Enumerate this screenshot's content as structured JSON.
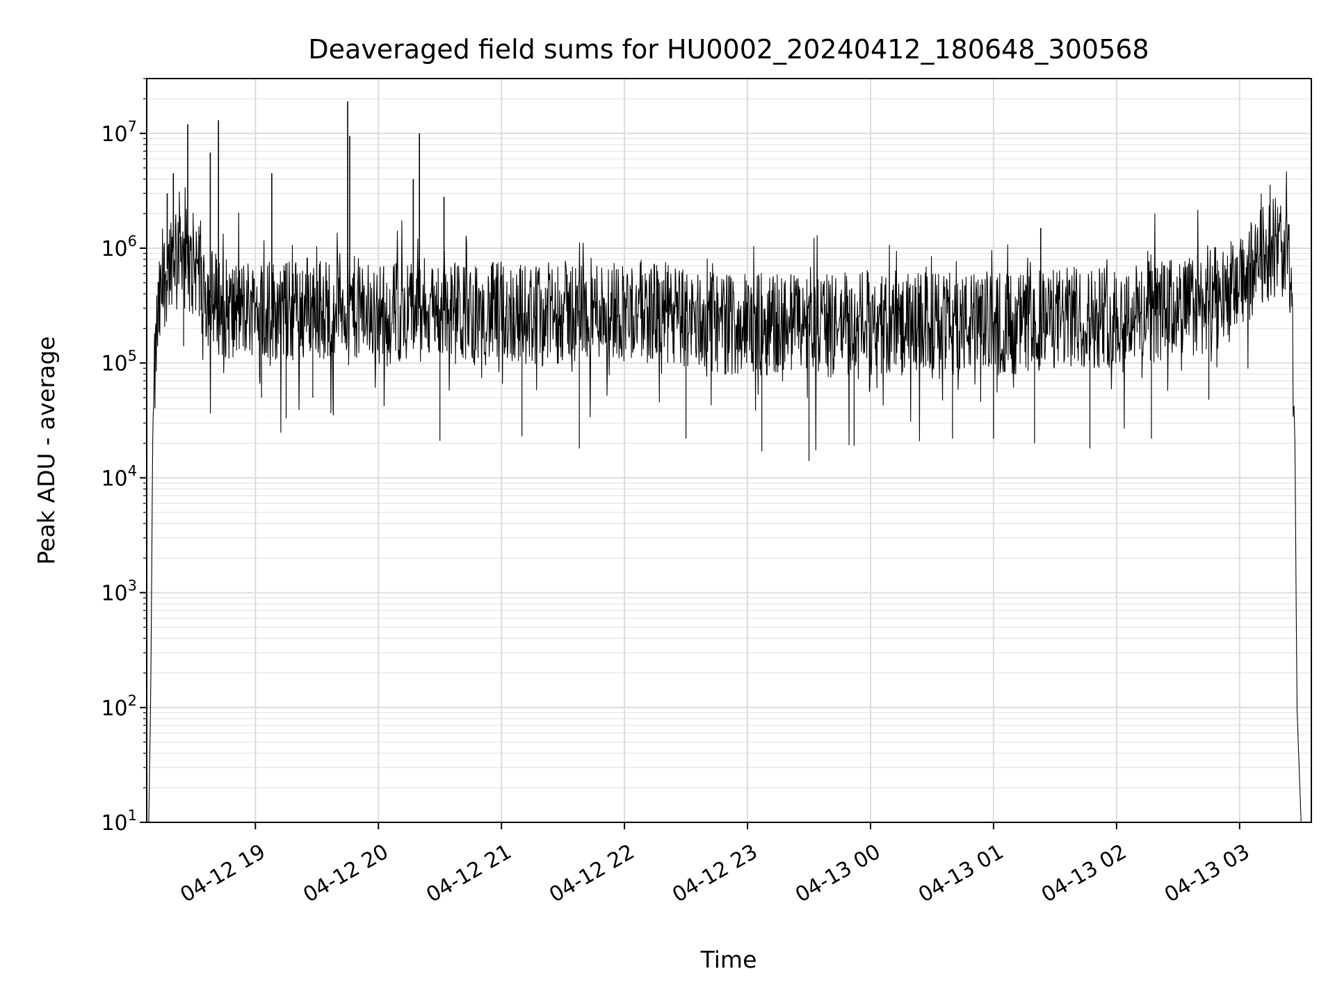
{
  "chart_data": {
    "type": "line",
    "title": "Deaveraged field sums for HU0002_20240412_180648_300568",
    "xlabel": "Time",
    "ylabel": "Peak ADU - average",
    "yscale": "log",
    "ylim": [
      10,
      30000000
    ],
    "xlim": [
      "2024-04-12 18:07",
      "2024-04-13 03:35"
    ],
    "grid": true,
    "line_color": "#000000",
    "xticks": [
      {
        "t": "2024-04-12 19:00",
        "label": "04-12 19"
      },
      {
        "t": "2024-04-12 20:00",
        "label": "04-12 20"
      },
      {
        "t": "2024-04-12 21:00",
        "label": "04-12 21"
      },
      {
        "t": "2024-04-12 22:00",
        "label": "04-12 22"
      },
      {
        "t": "2024-04-12 23:00",
        "label": "04-12 23"
      },
      {
        "t": "2024-04-13 00:00",
        "label": "04-13 00"
      },
      {
        "t": "2024-04-13 01:00",
        "label": "04-13 01"
      },
      {
        "t": "2024-04-13 02:00",
        "label": "04-13 02"
      },
      {
        "t": "2024-04-13 03:00",
        "label": "04-13 03"
      }
    ],
    "yticks": [
      {
        "v": 10,
        "base": "10",
        "exp": "1"
      },
      {
        "v": 100,
        "base": "10",
        "exp": "2"
      },
      {
        "v": 1000,
        "base": "10",
        "exp": "3"
      },
      {
        "v": 10000,
        "base": "10",
        "exp": "4"
      },
      {
        "v": 100000,
        "base": "10",
        "exp": "5"
      },
      {
        "v": 1000000,
        "base": "10",
        "exp": "6"
      },
      {
        "v": 10000000,
        "base": "10",
        "exp": "7"
      }
    ],
    "series": [
      {
        "x": [
          "2024-04-12 18:08",
          "2024-04-12 18:09",
          "2024-04-12 18:10",
          "2024-04-12 18:12",
          "2024-04-12 18:15",
          "2024-04-12 18:20",
          "2024-04-12 18:24",
          "2024-04-12 18:28",
          "2024-04-12 18:32",
          "2024-04-12 18:36",
          "2024-04-12 18:40",
          "2024-04-12 18:45",
          "2024-04-12 18:50",
          "2024-04-12 18:55",
          "2024-04-12 19:00",
          "2024-04-12 19:05",
          "2024-04-12 19:10",
          "2024-04-12 19:15",
          "2024-04-12 19:20",
          "2024-04-12 19:25",
          "2024-04-12 19:30",
          "2024-04-12 19:35",
          "2024-04-12 19:40",
          "2024-04-12 19:45",
          "2024-04-12 19:50",
          "2024-04-12 19:55",
          "2024-04-12 20:00",
          "2024-04-12 20:10",
          "2024-04-12 20:20",
          "2024-04-12 20:30",
          "2024-04-12 20:40",
          "2024-04-12 20:50",
          "2024-04-12 21:00",
          "2024-04-12 21:10",
          "2024-04-12 21:20",
          "2024-04-12 21:30",
          "2024-04-12 21:40",
          "2024-04-12 21:50",
          "2024-04-12 22:00",
          "2024-04-12 22:10",
          "2024-04-12 22:20",
          "2024-04-12 22:30",
          "2024-04-12 22:40",
          "2024-04-12 22:50",
          "2024-04-12 23:00",
          "2024-04-12 23:10",
          "2024-04-12 23:20",
          "2024-04-12 23:30",
          "2024-04-12 23:40",
          "2024-04-12 23:50",
          "2024-04-13 00:00",
          "2024-04-13 00:10",
          "2024-04-13 00:20",
          "2024-04-13 00:30",
          "2024-04-13 00:40",
          "2024-04-13 00:50",
          "2024-04-13 01:00",
          "2024-04-13 01:10",
          "2024-04-13 01:20",
          "2024-04-13 01:30",
          "2024-04-13 01:40",
          "2024-04-13 01:50",
          "2024-04-13 02:00",
          "2024-04-13 02:10",
          "2024-04-13 02:20",
          "2024-04-13 02:30",
          "2024-04-13 02:40",
          "2024-04-13 02:50",
          "2024-04-13 03:00",
          "2024-04-13 03:05",
          "2024-04-13 03:10",
          "2024-04-13 03:15",
          "2024-04-13 03:20",
          "2024-04-13 03:23",
          "2024-04-13 03:25",
          "2024-04-13 03:27",
          "2024-04-13 03:28",
          "2024-04-13 03:30"
        ],
        "y": [
          10,
          150,
          30000,
          200000,
          500000,
          1000000,
          1200000,
          600000,
          800000,
          400000,
          350000,
          300000,
          280000,
          300000,
          320000,
          300000,
          290000,
          280000,
          300000,
          330000,
          310000,
          300000,
          350000,
          320000,
          300000,
          280000,
          270000,
          280000,
          300000,
          290000,
          270000,
          260000,
          280000,
          270000,
          260000,
          280000,
          290000,
          300000,
          290000,
          280000,
          270000,
          240000,
          230000,
          220000,
          210000,
          220000,
          230000,
          220000,
          210000,
          220000,
          220000,
          210000,
          220000,
          230000,
          220000,
          220000,
          230000,
          220000,
          230000,
          240000,
          250000,
          250000,
          260000,
          270000,
          280000,
          300000,
          320000,
          380000,
          450000,
          600000,
          850000,
          1000000,
          1050000,
          900000,
          500000,
          20000,
          100,
          10
        ]
      }
    ],
    "spikes": [
      {
        "t": "2024-04-12 18:17",
        "v": 3000000
      },
      {
        "t": "2024-04-12 18:20",
        "v": 4500000
      },
      {
        "t": "2024-04-12 18:27",
        "v": 12000000
      },
      {
        "t": "2024-04-12 18:38",
        "v": 6800000
      },
      {
        "t": "2024-04-12 18:42",
        "v": 13000000
      },
      {
        "t": "2024-04-12 19:08",
        "v": 4500000
      },
      {
        "t": "2024-04-12 19:45",
        "v": 19000000
      },
      {
        "t": "2024-04-12 19:46",
        "v": 9500000
      },
      {
        "t": "2024-04-12 20:17",
        "v": 4000000
      },
      {
        "t": "2024-04-12 20:20",
        "v": 10000000
      },
      {
        "t": "2024-04-12 20:32",
        "v": 2800000
      },
      {
        "t": "2024-04-13 01:23",
        "v": 1500000
      }
    ],
    "dips": [
      {
        "t": "2024-04-12 18:25",
        "v": 140000
      },
      {
        "t": "2024-04-12 19:03",
        "v": 50000
      },
      {
        "t": "2024-04-12 19:15",
        "v": 33000
      },
      {
        "t": "2024-04-12 19:28",
        "v": 50000
      },
      {
        "t": "2024-04-12 19:38",
        "v": 35000
      },
      {
        "t": "2024-04-12 20:30",
        "v": 21000
      },
      {
        "t": "2024-04-12 21:10",
        "v": 23000
      },
      {
        "t": "2024-04-12 21:38",
        "v": 18000
      },
      {
        "t": "2024-04-12 22:30",
        "v": 22000
      },
      {
        "t": "2024-04-12 23:07",
        "v": 17000
      },
      {
        "t": "2024-04-12 23:30",
        "v": 14000
      },
      {
        "t": "2024-04-12 23:52",
        "v": 19000
      },
      {
        "t": "2024-04-13 00:40",
        "v": 22000
      },
      {
        "t": "2024-04-13 01:00",
        "v": 22000
      },
      {
        "t": "2024-04-13 01:20",
        "v": 20000
      },
      {
        "t": "2024-04-13 01:47",
        "v": 18000
      },
      {
        "t": "2024-04-13 02:17",
        "v": 22000
      },
      {
        "t": "2024-04-13 02:45",
        "v": 48000
      }
    ]
  }
}
